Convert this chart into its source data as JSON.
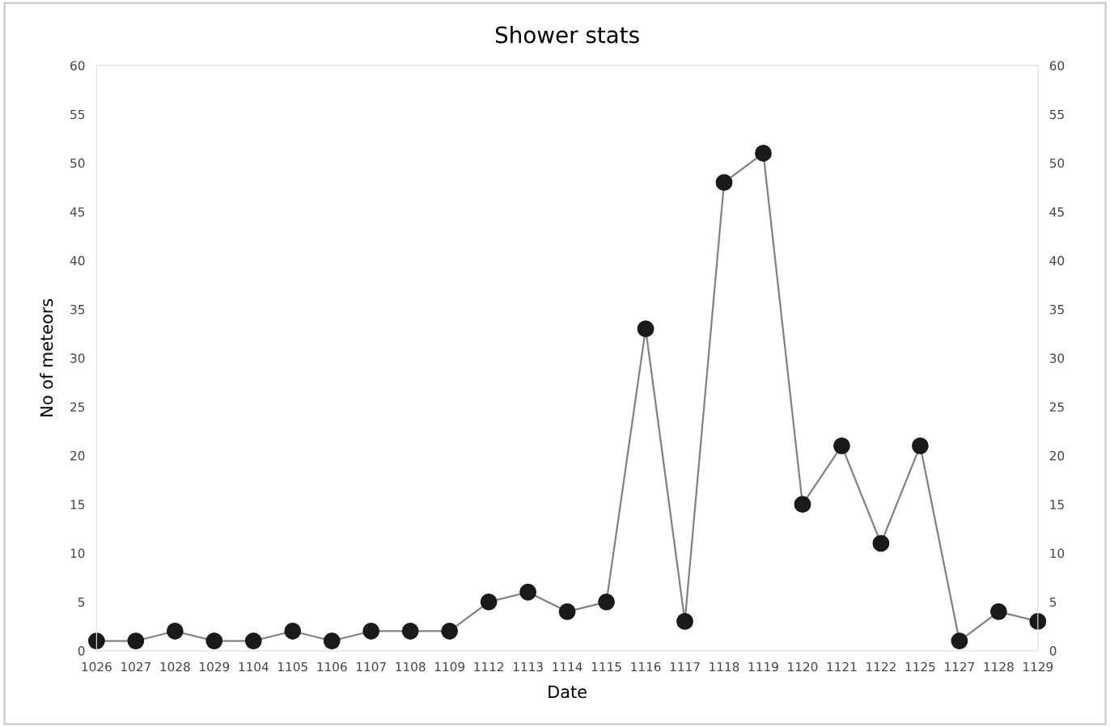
{
  "chart_data": {
    "type": "line",
    "title": "Shower stats",
    "xlabel": "Date",
    "ylabel": "No of meteors",
    "categories": [
      "1026",
      "1027",
      "1028",
      "1029",
      "1104",
      "1105",
      "1106",
      "1107",
      "1108",
      "1109",
      "1112",
      "1113",
      "1114",
      "1115",
      "1116",
      "1117",
      "1118",
      "1119",
      "1120",
      "1121",
      "1122",
      "1125",
      "1127",
      "1128",
      "1129"
    ],
    "series": [
      {
        "color": "#1a1a1a",
        "values": [
          1,
          1,
          2,
          1,
          1,
          2,
          1,
          2,
          2,
          2,
          5,
          6,
          4,
          5,
          33,
          3,
          48,
          51,
          15,
          21,
          11,
          21,
          1,
          4,
          3
        ]
      }
    ],
    "marker": "circle",
    "line_style": "solid",
    "ylim": [
      0,
      60
    ],
    "yticks": [
      0,
      5,
      10,
      15,
      20,
      25,
      30,
      35,
      40,
      45,
      50,
      55,
      60
    ],
    "y2lim": [
      0,
      60
    ],
    "y2ticks": [
      0,
      5,
      10,
      15,
      20,
      25,
      30,
      35,
      40,
      45,
      50,
      55,
      60
    ]
  }
}
